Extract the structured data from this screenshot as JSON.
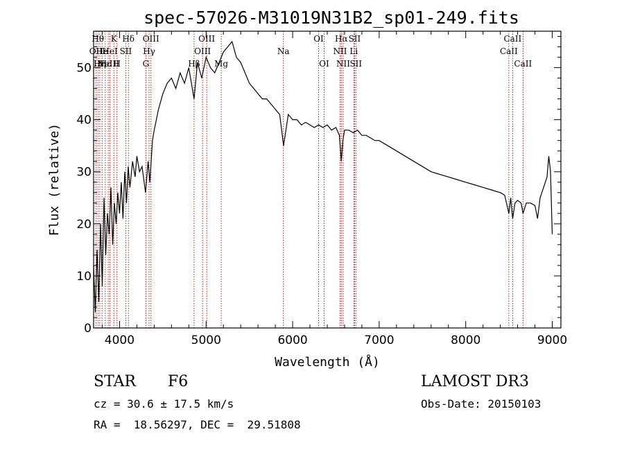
{
  "chart_data": {
    "type": "line",
    "title": "spec-57026-M31019N31B2_sp01-249.fits",
    "xlabel": "Wavelength (Å)",
    "ylabel": "Flux (relative)",
    "xlim": [
      3700,
      9100
    ],
    "ylim": [
      0,
      57
    ],
    "xticks": [
      4000,
      5000,
      6000,
      7000,
      8000,
      9000
    ],
    "yticks": [
      0,
      10,
      20,
      30,
      40,
      50
    ],
    "series": [
      {
        "name": "flux",
        "x": [
          3700,
          3720,
          3740,
          3760,
          3780,
          3800,
          3820,
          3840,
          3860,
          3880,
          3900,
          3920,
          3940,
          3960,
          3980,
          4000,
          4020,
          4040,
          4060,
          4080,
          4100,
          4120,
          4150,
          4180,
          4200,
          4230,
          4260,
          4300,
          4330,
          4350,
          4380,
          4400,
          4450,
          4500,
          4550,
          4600,
          4650,
          4700,
          4750,
          4800,
          4861,
          4900,
          4950,
          5000,
          5050,
          5100,
          5150,
          5200,
          5250,
          5300,
          5350,
          5400,
          5450,
          5500,
          5550,
          5600,
          5650,
          5700,
          5750,
          5800,
          5850,
          5895,
          5950,
          6000,
          6050,
          6100,
          6150,
          6200,
          6250,
          6300,
          6350,
          6400,
          6450,
          6500,
          6540,
          6563,
          6580,
          6600,
          6650,
          6700,
          6750,
          6800,
          6850,
          6900,
          6950,
          7000,
          7100,
          7200,
          7300,
          7400,
          7500,
          7600,
          7700,
          7800,
          7900,
          8000,
          8100,
          8200,
          8300,
          8400,
          8450,
          8498,
          8520,
          8542,
          8570,
          8600,
          8640,
          8662,
          8700,
          8750,
          8800,
          8830,
          8860,
          8900,
          8940,
          8960,
          8980,
          9000
        ],
        "y": [
          12,
          3,
          15,
          5,
          20,
          8,
          25,
          14,
          22,
          18,
          27,
          16,
          24,
          20,
          26,
          22,
          28,
          21,
          30,
          24,
          31,
          27,
          32,
          29,
          33,
          30,
          31,
          26,
          32,
          28,
          36,
          38,
          42,
          45,
          47,
          48,
          46,
          49,
          47,
          50,
          44,
          51,
          48,
          52,
          50,
          49,
          51,
          53,
          54,
          55,
          52,
          51,
          49,
          47,
          46,
          45,
          44,
          44,
          43,
          42,
          41,
          35,
          41,
          40,
          40,
          39,
          39.5,
          39,
          38.5,
          39,
          38.5,
          39,
          38,
          38.5,
          37,
          32,
          36,
          38,
          38,
          37.5,
          38,
          37,
          37,
          36.5,
          36,
          36,
          35,
          34,
          33,
          32,
          31,
          30,
          29.5,
          29,
          28.5,
          28,
          27.5,
          27,
          26.5,
          26,
          25.5,
          22,
          25,
          21,
          24,
          24.5,
          24,
          22,
          24,
          24,
          23.5,
          21,
          25,
          27,
          29,
          33,
          30,
          18
        ]
      }
    ],
    "lines": [
      {
        "x": 3727,
        "label": "OII",
        "row": 2
      },
      {
        "x": 3750,
        "label": "Hθ",
        "row": 1
      },
      {
        "x": 3771,
        "label": "Hη",
        "row": 3
      },
      {
        "x": 3798,
        "label": "He",
        "row": 2
      },
      {
        "x": 3835,
        "label": "Hε",
        "row": 3
      },
      {
        "x": 3869,
        "label": "NeIII",
        "row": 3
      },
      {
        "x": 3889,
        "label": "HeI",
        "row": 2
      },
      {
        "x": 3934,
        "label": "K",
        "row": 1
      },
      {
        "x": 3970,
        "label": "H",
        "row": 3
      },
      {
        "x": 4072,
        "label": "SII",
        "row": 2
      },
      {
        "x": 4102,
        "label": "Hδ",
        "row": 1
      },
      {
        "x": 4304,
        "label": "G",
        "row": 3
      },
      {
        "x": 4341,
        "label": "Hγ",
        "row": 2
      },
      {
        "x": 4363,
        "label": "OIII",
        "row": 1
      },
      {
        "x": 4861,
        "label": "Hβ",
        "row": 3
      },
      {
        "x": 4959,
        "label": "OIII",
        "row": 2
      },
      {
        "x": 5007,
        "label": "OIII",
        "row": 1
      },
      {
        "x": 5175,
        "label": "Mg",
        "row": 3
      },
      {
        "x": 5893,
        "label": "Na",
        "row": 2
      },
      {
        "x": 6300,
        "label": "OI",
        "row": 1
      },
      {
        "x": 6364,
        "label": "OI",
        "row": 3
      },
      {
        "x": 6548,
        "label": "NII",
        "row": 2
      },
      {
        "x": 6563,
        "label": "Hα",
        "row": 1
      },
      {
        "x": 6584,
        "label": "NII",
        "row": 3
      },
      {
        "x": 6707,
        "label": "Li",
        "row": 2
      },
      {
        "x": 6716,
        "label": "SII",
        "row": 1
      },
      {
        "x": 6731,
        "label": "SII",
        "row": 3
      },
      {
        "x": 8498,
        "label": "CaII",
        "row": 2
      },
      {
        "x": 8542,
        "label": "CaII",
        "row": 1
      },
      {
        "x": 8662,
        "label": "CaII",
        "row": 3
      }
    ]
  },
  "info": {
    "object_class": "STAR",
    "subclass": "F6",
    "survey": "LAMOST DR3",
    "cz": "cz = 30.6 ± 17.5 km/s",
    "obs_date": "Obs-Date: 20150103",
    "coords": "RA =  18.56297, DEC =  29.51808"
  },
  "colors": {
    "spectrum": "#000000",
    "line_markers": "#b00000"
  }
}
